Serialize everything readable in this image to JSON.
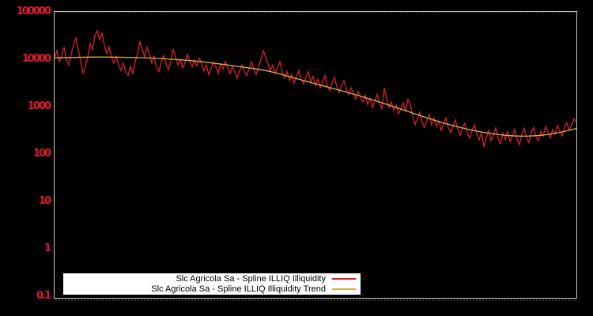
{
  "colors": {
    "background": "#000000",
    "plot_border": "#c8c8c8",
    "axis_tick": "#9a9a9a",
    "y_label": "#e0192d",
    "illiq_line": "#d8202f",
    "trend_line": "#d2b14a",
    "legend_background": "#ffffff",
    "legend_text": "#000000"
  },
  "chart_data": {
    "type": "line",
    "title": "",
    "xlabel": "",
    "ylabel": "",
    "y_axis": {
      "scale": "log10",
      "range": [
        0.1,
        100000
      ],
      "ticks": [
        {
          "label": "100000",
          "log10": 5
        },
        {
          "label": "10000",
          "log10": 4
        },
        {
          "label": "1000",
          "log10": 3
        },
        {
          "label": "100",
          "log10": 2
        },
        {
          "label": "10",
          "log10": 1
        },
        {
          "label": "1",
          "log10": 0
        },
        {
          "label": "0.1",
          "log10": -1
        }
      ]
    },
    "x_axis": {
      "labels": [],
      "minor_tick_spacing_px": 4
    },
    "legend": {
      "position": "bottom-left",
      "entries": [
        {
          "label": "Slc Agricola Sa - Spline ILLIQ Illiquidity",
          "color": "#d8202f"
        },
        {
          "label": "Slc Agricola Sa - Spline ILLIQ Illiquidity Trend",
          "color": "#d2b14a"
        }
      ]
    },
    "series": [
      {
        "name": "Slc Agricola Sa - Spline ILLIQ Illiquidity",
        "color": "#d8202f",
        "x_start": 0,
        "x_step": 3,
        "log10_values": [
          4.03,
          4.18,
          3.95,
          4.08,
          4.26,
          3.98,
          3.88,
          4.1,
          4.31,
          4.45,
          4.2,
          3.96,
          3.7,
          3.86,
          4.05,
          4.33,
          4.2,
          4.5,
          4.6,
          4.42,
          4.55,
          4.3,
          4.12,
          4.26,
          4.05,
          3.92,
          4.06,
          3.88,
          3.76,
          3.92,
          3.74,
          3.66,
          3.85,
          3.7,
          3.95,
          4.12,
          4.38,
          4.2,
          4.05,
          4.25,
          4.1,
          3.92,
          4.06,
          3.83,
          3.74,
          3.95,
          4.08,
          3.9,
          3.78,
          3.95,
          4.22,
          4.05,
          3.88,
          4.0,
          3.82,
          3.92,
          4.1,
          3.96,
          3.84,
          3.98,
          3.86,
          4.02,
          3.92,
          3.75,
          3.88,
          3.67,
          3.8,
          3.95,
          3.84,
          3.7,
          3.9,
          3.79,
          3.95,
          3.82,
          3.7,
          3.85,
          3.72,
          3.6,
          3.76,
          3.88,
          3.75,
          3.65,
          3.8,
          3.95,
          3.78,
          3.68,
          3.85,
          4.0,
          4.18,
          4.05,
          3.9,
          3.76,
          3.88,
          3.7,
          3.82,
          3.95,
          3.72,
          3.6,
          3.74,
          3.55,
          3.68,
          3.5,
          3.63,
          3.76,
          3.58,
          3.48,
          3.62,
          3.74,
          3.52,
          3.64,
          3.45,
          3.58,
          3.4,
          3.52,
          3.66,
          3.44,
          3.34,
          3.5,
          3.62,
          3.42,
          3.3,
          3.46,
          3.55,
          3.36,
          3.25,
          3.4,
          3.28,
          3.16,
          3.32,
          3.2,
          3.1,
          3.24,
          3.05,
          3.18,
          2.98,
          3.12,
          3.26,
          3.06,
          2.96,
          3.4,
          3.15,
          2.98,
          3.1,
          2.92,
          3.04,
          2.85,
          2.96,
          3.08,
          2.9,
          3.15,
          3.05,
          2.8,
          2.62,
          2.75,
          2.88,
          2.66,
          2.56,
          2.72,
          2.84,
          2.62,
          2.76,
          2.58,
          2.7,
          2.5,
          2.64,
          2.76,
          2.55,
          2.45,
          2.6,
          2.72,
          2.52,
          2.4,
          2.56,
          2.65,
          2.44,
          2.34,
          2.5,
          2.62,
          2.42,
          2.3,
          2.45,
          2.15,
          2.35,
          2.5,
          2.28,
          2.4,
          2.55,
          2.32,
          2.22,
          2.44,
          2.3,
          2.48,
          2.26,
          2.38,
          2.52,
          2.32,
          2.2,
          2.42,
          2.54,
          2.34,
          2.24,
          2.46,
          2.56,
          2.36,
          2.28,
          2.48,
          2.38,
          2.58,
          2.46,
          2.34,
          2.52,
          2.42,
          2.6,
          2.48,
          2.38,
          2.58,
          2.66,
          2.5,
          2.62,
          2.74,
          2.68
        ]
      },
      {
        "name": "Slc Agricola Sa - Spline ILLIQ Illiquidity Trend",
        "color": "#d2b14a",
        "points": [
          [
            0,
            4.03
          ],
          [
            30,
            4.04
          ],
          [
            60,
            4.05
          ],
          [
            90,
            4.04
          ],
          [
            120,
            4.03
          ],
          [
            150,
            4.0
          ],
          [
            180,
            3.96
          ],
          [
            210,
            3.9
          ],
          [
            240,
            3.83
          ],
          [
            270,
            3.76
          ],
          [
            300,
            3.62
          ],
          [
            330,
            3.48
          ],
          [
            360,
            3.35
          ],
          [
            390,
            3.21
          ],
          [
            420,
            3.05
          ],
          [
            450,
            2.88
          ],
          [
            480,
            2.71
          ],
          [
            510,
            2.57
          ],
          [
            540,
            2.46
          ],
          [
            570,
            2.39
          ],
          [
            600,
            2.37
          ],
          [
            630,
            2.42
          ],
          [
            660,
            2.54
          ]
        ]
      }
    ]
  }
}
